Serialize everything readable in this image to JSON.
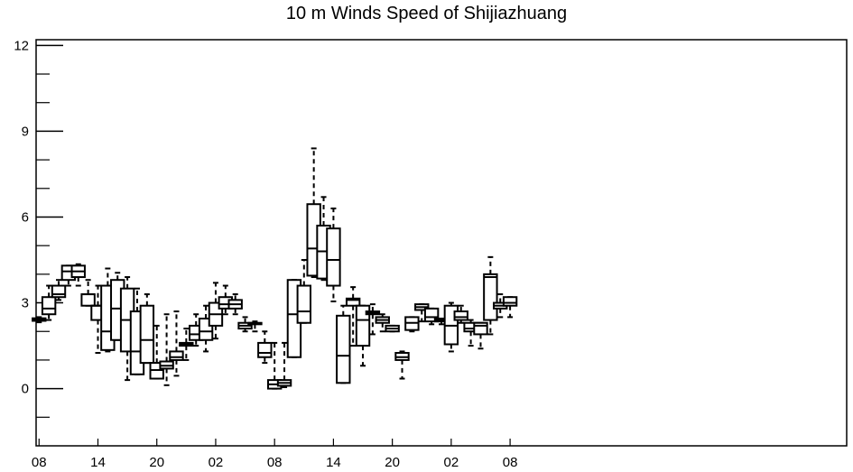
{
  "chart_data": {
    "type": "box",
    "title": "10 m Winds Speed of Shijiazhuang",
    "xlabel": "",
    "ylabel": "",
    "ylim": [
      -2,
      12.2
    ],
    "yticks": [
      0,
      3,
      6,
      9,
      12
    ],
    "yminor_ticks": [
      -1,
      1,
      2,
      4,
      5,
      7,
      8,
      10,
      11
    ],
    "xlim": [
      -0.3,
      82.3
    ],
    "xticks": [
      {
        "x": 0,
        "label": "08"
      },
      {
        "x": 6,
        "label": "14"
      },
      {
        "x": 12,
        "label": "20"
      },
      {
        "x": 18,
        "label": "02"
      },
      {
        "x": 24,
        "label": "08"
      },
      {
        "x": 30,
        "label": "14"
      },
      {
        "x": 36,
        "label": "20"
      },
      {
        "x": 42,
        "label": "02"
      },
      {
        "x": 48,
        "label": "08"
      }
    ],
    "boxes": [
      {
        "x": 0,
        "min": 2.32,
        "q1": 2.37,
        "median": 2.42,
        "q3": 2.46,
        "max": 2.5
      },
      {
        "x": 1,
        "min": 2.4,
        "q1": 2.6,
        "median": 2.8,
        "q3": 3.2,
        "max": 3.6
      },
      {
        "x": 2,
        "min": 3.1,
        "q1": 3.2,
        "median": 3.3,
        "q3": 3.6,
        "max": 3.8
      },
      {
        "x": 3,
        "min": 3.6,
        "q1": 3.8,
        "median": 4.1,
        "q3": 4.3,
        "max": 4.3
      },
      {
        "x": 4,
        "min": 3.6,
        "q1": 3.9,
        "median": 4.1,
        "q3": 4.3,
        "max": 4.35
      },
      {
        "x": 5,
        "min": 2.9,
        "q1": 2.9,
        "median": 3.3,
        "q3": 3.3,
        "max": 3.8
      },
      {
        "x": 6,
        "min": 1.25,
        "q1": 2.4,
        "median": 2.9,
        "q3": 2.9,
        "max": 3.6
      },
      {
        "x": 7,
        "min": 1.3,
        "q1": 1.35,
        "median": 2.0,
        "q3": 3.6,
        "max": 4.2
      },
      {
        "x": 8,
        "min": 1.7,
        "q1": 1.7,
        "median": 2.8,
        "q3": 3.8,
        "max": 4.05
      },
      {
        "x": 9,
        "min": 0.3,
        "q1": 1.3,
        "median": 2.4,
        "q3": 3.5,
        "max": 3.9
      },
      {
        "x": 10,
        "min": 0.5,
        "q1": 0.5,
        "median": 1.3,
        "q3": 2.7,
        "max": 3.5
      },
      {
        "x": 11,
        "min": 0.9,
        "q1": 0.9,
        "median": 1.7,
        "q3": 2.9,
        "max": 3.3
      },
      {
        "x": 12,
        "min": 0.35,
        "q1": 0.35,
        "median": 0.65,
        "q3": 0.9,
        "max": 2.2
      },
      {
        "x": 13,
        "min": 0.12,
        "q1": 0.7,
        "median": 0.8,
        "q3": 0.95,
        "max": 2.6
      },
      {
        "x": 14,
        "min": 0.45,
        "q1": 1.0,
        "median": 1.1,
        "q3": 1.3,
        "max": 2.7
      },
      {
        "x": 15,
        "min": 1.0,
        "q1": 1.5,
        "median": 1.55,
        "q3": 1.6,
        "max": 2.1
      },
      {
        "x": 16,
        "min": 1.5,
        "q1": 1.7,
        "median": 1.9,
        "q3": 2.2,
        "max": 2.6
      },
      {
        "x": 17,
        "min": 1.3,
        "q1": 1.7,
        "median": 2.0,
        "q3": 2.45,
        "max": 2.9
      },
      {
        "x": 18,
        "min": 1.75,
        "q1": 2.2,
        "median": 2.6,
        "q3": 3.0,
        "max": 3.7
      },
      {
        "x": 19,
        "min": 2.6,
        "q1": 2.8,
        "median": 2.95,
        "q3": 3.2,
        "max": 3.6
      },
      {
        "x": 20,
        "min": 2.6,
        "q1": 2.8,
        "median": 2.95,
        "q3": 3.1,
        "max": 3.3
      },
      {
        "x": 21,
        "min": 2.0,
        "q1": 2.1,
        "median": 2.2,
        "q3": 2.3,
        "max": 2.5
      },
      {
        "x": 22,
        "min": 2.0,
        "q1": 2.25,
        "median": 2.28,
        "q3": 2.3,
        "max": 2.35
      },
      {
        "x": 23,
        "min": 0.9,
        "q1": 1.1,
        "median": 1.25,
        "q3": 1.6,
        "max": 2.0
      },
      {
        "x": 24,
        "min": 0.0,
        "q1": 0.0,
        "median": 0.15,
        "q3": 0.3,
        "max": 1.6
      },
      {
        "x": 25,
        "min": 0.05,
        "q1": 0.1,
        "median": 0.2,
        "q3": 0.3,
        "max": 1.6
      },
      {
        "x": 26,
        "min": 1.1,
        "q1": 1.1,
        "median": 2.6,
        "q3": 3.8,
        "max": 3.8
      },
      {
        "x": 27,
        "min": 2.3,
        "q1": 2.3,
        "median": 2.7,
        "q3": 3.6,
        "max": 4.5
      },
      {
        "x": 28,
        "min": 3.9,
        "q1": 3.95,
        "median": 4.9,
        "q3": 6.45,
        "max": 8.4
      },
      {
        "x": 29,
        "min": 3.8,
        "q1": 3.85,
        "median": 4.8,
        "q3": 5.7,
        "max": 6.7
      },
      {
        "x": 30,
        "min": 3.05,
        "q1": 3.6,
        "median": 4.5,
        "q3": 5.6,
        "max": 6.3
      },
      {
        "x": 31,
        "min": 0.2,
        "q1": 0.2,
        "median": 1.15,
        "q3": 2.55,
        "max": 2.9
      },
      {
        "x": 32,
        "min": 1.5,
        "q1": 2.9,
        "median": 3.1,
        "q3": 3.15,
        "max": 3.55
      },
      {
        "x": 33,
        "min": 0.8,
        "q1": 1.5,
        "median": 2.4,
        "q3": 2.9,
        "max": 2.9
      },
      {
        "x": 34,
        "min": 1.9,
        "q1": 2.6,
        "median": 2.65,
        "q3": 2.7,
        "max": 2.95
      },
      {
        "x": 35,
        "min": 2.0,
        "q1": 2.3,
        "median": 2.4,
        "q3": 2.5,
        "max": 2.6
      },
      {
        "x": 36,
        "min": 2.0,
        "q1": 2.0,
        "median": 2.1,
        "q3": 2.2,
        "max": 2.2
      },
      {
        "x": 37,
        "min": 0.35,
        "q1": 1.0,
        "median": 1.1,
        "q3": 1.25,
        "max": 1.3
      },
      {
        "x": 38,
        "min": 2.0,
        "q1": 2.05,
        "median": 2.3,
        "q3": 2.5,
        "max": 2.5
      },
      {
        "x": 39,
        "min": 2.35,
        "q1": 2.75,
        "median": 2.85,
        "q3": 2.95,
        "max": 2.95
      },
      {
        "x": 40,
        "min": 2.25,
        "q1": 2.35,
        "median": 2.5,
        "q3": 2.8,
        "max": 2.8
      },
      {
        "x": 41,
        "min": 2.25,
        "q1": 2.35,
        "median": 2.4,
        "q3": 2.45,
        "max": 2.45
      },
      {
        "x": 42,
        "min": 1.3,
        "q1": 1.55,
        "median": 2.2,
        "q3": 2.9,
        "max": 3.0
      },
      {
        "x": 43,
        "min": 2.3,
        "q1": 2.4,
        "median": 2.5,
        "q3": 2.7,
        "max": 2.9
      },
      {
        "x": 44,
        "min": 1.5,
        "q1": 2.0,
        "median": 2.1,
        "q3": 2.3,
        "max": 2.4
      },
      {
        "x": 45,
        "min": 1.4,
        "q1": 1.9,
        "median": 2.2,
        "q3": 2.3,
        "max": 2.3
      },
      {
        "x": 46,
        "min": 1.9,
        "q1": 2.4,
        "median": 3.9,
        "q3": 4.0,
        "max": 4.6
      },
      {
        "x": 47,
        "min": 2.5,
        "q1": 2.8,
        "median": 2.9,
        "q3": 3.0,
        "max": 3.3
      },
      {
        "x": 48,
        "min": 2.5,
        "q1": 2.9,
        "median": 3.0,
        "q3": 3.2,
        "max": 3.2
      }
    ],
    "grid": false,
    "legend": "none"
  }
}
